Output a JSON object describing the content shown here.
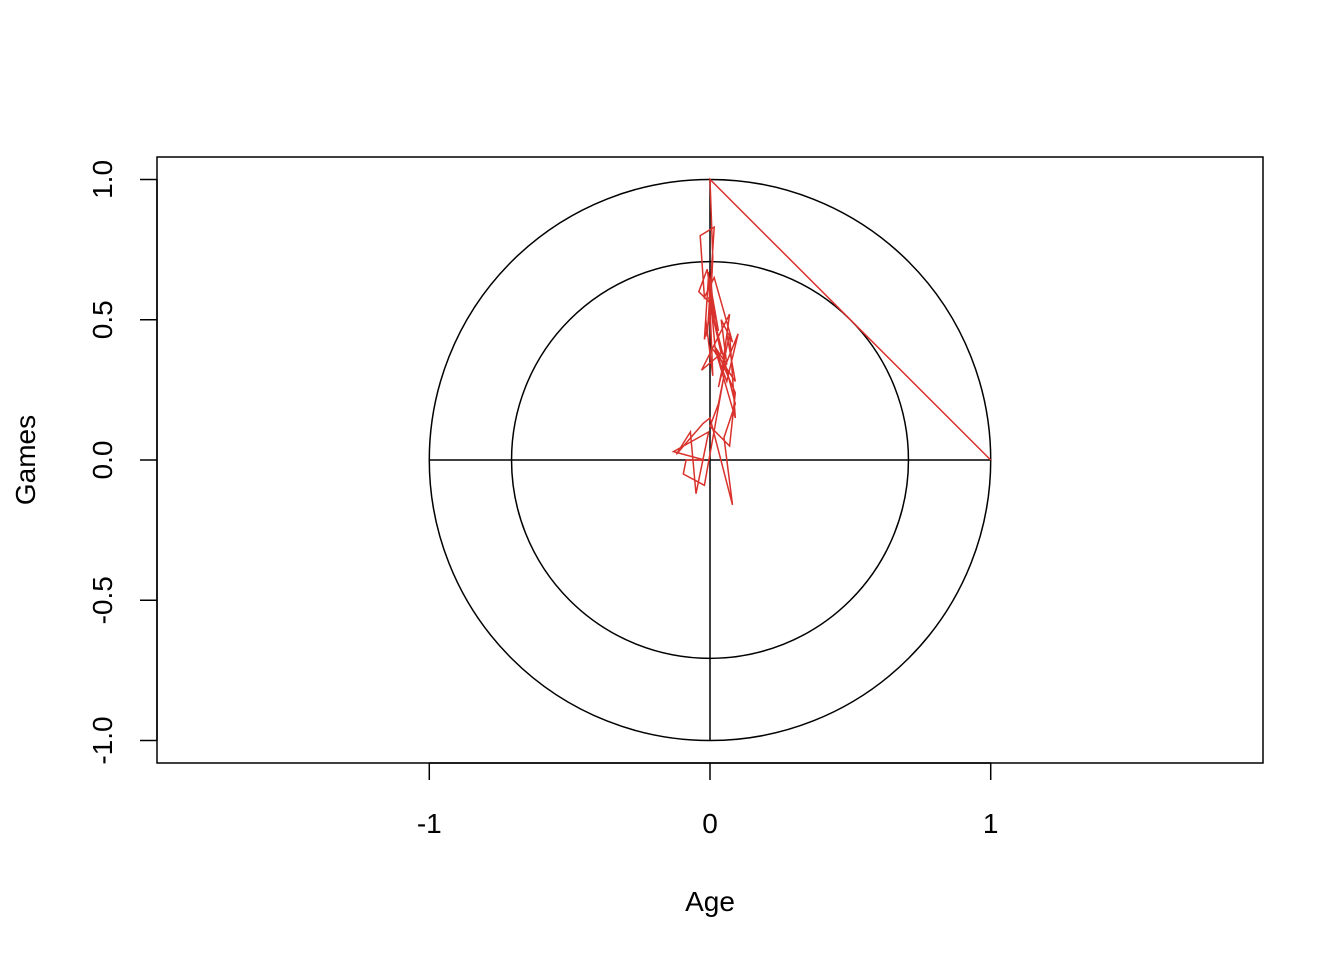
{
  "chart_data": {
    "type": "line",
    "title": "",
    "xlabel": "Age",
    "ylabel": "Games",
    "xlim": [
      -1.97,
      1.97
    ],
    "ylim": [
      -1.08,
      1.08
    ],
    "x_ticks": [
      "-1",
      "0",
      "1"
    ],
    "x_tick_values": [
      -1,
      0,
      1
    ],
    "y_ticks": [
      "-1.0",
      "-0.5",
      "0.0",
      "0.5",
      "1.0"
    ],
    "y_tick_values": [
      -1,
      -0.5,
      0,
      0.5,
      1
    ],
    "grid": false,
    "reference_circles": [
      {
        "radius": 1.0,
        "color": "#000000"
      },
      {
        "radius": 0.707,
        "color": "#000000"
      }
    ],
    "reference_lines": [
      {
        "x": [
          -1,
          1
        ],
        "y": [
          0,
          0
        ],
        "color": "#000000"
      },
      {
        "x": [
          0,
          0
        ],
        "y": [
          -1,
          1
        ],
        "color": "#000000"
      }
    ],
    "series": [
      {
        "color": "#d9312b",
        "x": [
          1.0,
          0.0,
          0.01,
          0.005,
          0.015,
          -0.01,
          -0.04,
          0.01,
          -0.02,
          -0.005,
          0.03,
          0.0,
          0.02,
          0.05,
          0.03,
          0.07,
          0.09,
          0.02,
          0.06,
          0.1,
          0.04,
          0.07,
          -0.03,
          0.04,
          -0.005,
          0.09,
          0.05,
          0.08,
          0.0,
          -0.025,
          -0.12,
          -0.07,
          -0.05,
          -0.005,
          -0.13,
          -0.02,
          -0.085,
          -0.095,
          -0.02,
          0.05,
          0.03,
          0.0,
          0.07,
          0.09,
          0.02,
          0.06,
          0.04,
          0.08,
          0.015,
          -0.02,
          -0.035,
          0.015,
          -0.01,
          -0.015,
          0.01,
          -0.005,
          0.005,
          0.03,
          0.09,
          0.06
        ],
        "y": [
          0.0,
          1.0,
          0.72,
          0.62,
          0.5,
          0.68,
          0.6,
          0.55,
          0.43,
          0.66,
          0.46,
          0.6,
          0.38,
          0.34,
          0.26,
          0.45,
          0.15,
          0.39,
          0.28,
          0.45,
          0.3,
          0.52,
          0.32,
          0.38,
          0.58,
          0.2,
          0.08,
          -0.16,
          0.15,
          0.13,
          0.02,
          0.1,
          -0.12,
          0.1,
          0.03,
          0.0,
          0.0,
          -0.05,
          -0.09,
          0.3,
          0.2,
          0.12,
          0.05,
          0.24,
          0.4,
          0.34,
          0.5,
          0.42,
          0.65,
          0.58,
          0.8,
          0.83,
          0.44,
          0.5,
          0.3,
          0.67,
          0.4,
          0.37,
          0.28,
          0.45
        ]
      }
    ]
  }
}
